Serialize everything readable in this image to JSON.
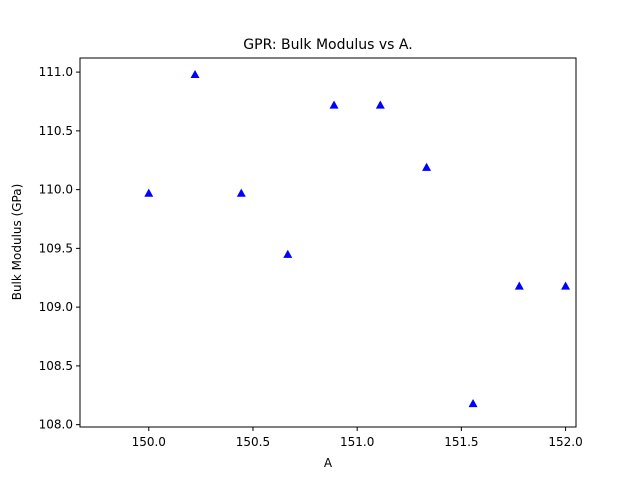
{
  "chart_data": {
    "type": "scatter",
    "title": "GPR: Bulk Modulus vs A.",
    "xlabel": "A",
    "ylabel": "Bulk Modulus (GPa)",
    "xlim": [
      149.67,
      152.05
    ],
    "ylim": [
      107.98,
      111.12
    ],
    "xticks": [
      150.0,
      150.5,
      151.0,
      151.5,
      152.0
    ],
    "xtick_labels": [
      "150.0",
      "150.5",
      "151.0",
      "151.5",
      "152.0"
    ],
    "yticks": [
      108.0,
      108.5,
      109.0,
      109.5,
      110.0,
      110.5,
      111.0
    ],
    "ytick_labels": [
      "108.0",
      "108.5",
      "109.0",
      "109.5",
      "110.0",
      "110.5",
      "111.0"
    ],
    "grid": false,
    "marker": "triangle-up",
    "color": "#0000ff",
    "x": [
      150.0,
      150.222,
      150.444,
      150.667,
      150.889,
      151.111,
      151.333,
      151.556,
      151.778,
      152.0
    ],
    "y": [
      109.97,
      110.98,
      109.97,
      109.45,
      110.72,
      110.72,
      110.19,
      108.18,
      109.18,
      109.18
    ]
  }
}
